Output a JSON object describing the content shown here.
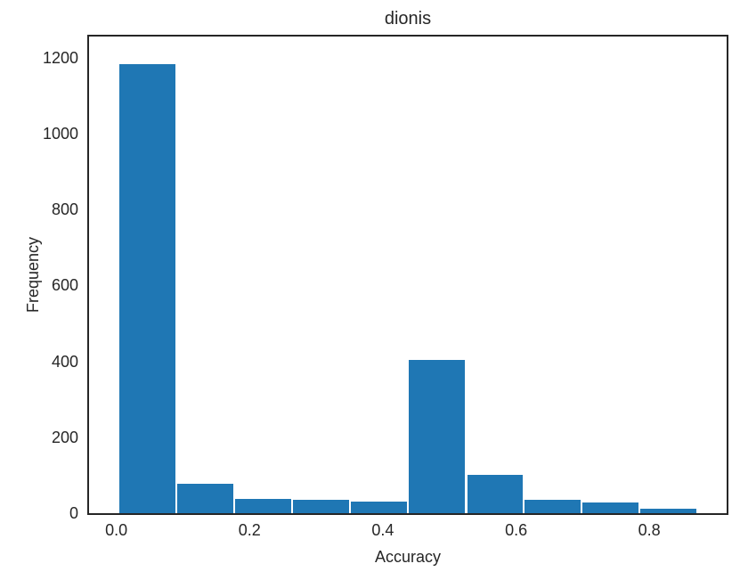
{
  "chart_data": {
    "type": "bar",
    "variant": "histogram",
    "title": "dionis",
    "xlabel": "Accuracy",
    "ylabel": "Frequency",
    "bin_edges": [
      0.003,
      0.09,
      0.177,
      0.264,
      0.351,
      0.438,
      0.525,
      0.611,
      0.698,
      0.785,
      0.872
    ],
    "values": [
      1186,
      81,
      41,
      38,
      33,
      406,
      104,
      38,
      30,
      15
    ],
    "xticks": [
      0.0,
      0.2,
      0.4,
      0.6,
      0.8
    ],
    "xtick_labels": [
      "0.0",
      "0.2",
      "0.4",
      "0.6",
      "0.8"
    ],
    "yticks": [
      0,
      200,
      400,
      600,
      800,
      1000,
      1200
    ],
    "ytick_labels": [
      "0",
      "200",
      "400",
      "600",
      "800",
      "1000",
      "1200"
    ],
    "xlim": [
      -0.041,
      0.916
    ],
    "ylim": [
      0,
      1256
    ],
    "grid": false,
    "legend": null,
    "colors": {
      "bar_fill": "#1f77b4",
      "bar_edge": "#ffffff",
      "spine": "#262626",
      "text": "#262626",
      "background": "#ffffff"
    }
  }
}
